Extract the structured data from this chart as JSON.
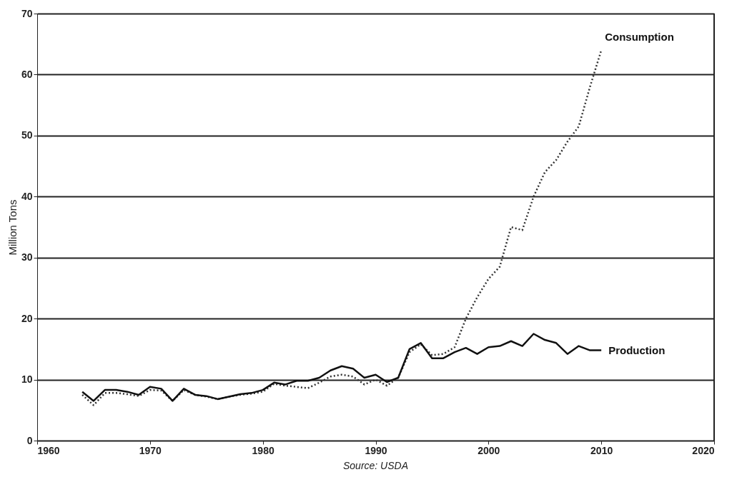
{
  "chart_data": {
    "type": "line",
    "ylabel": "Million Tons",
    "annotations": [
      "Source: USDA"
    ],
    "x": [
      1964,
      1965,
      1966,
      1967,
      1968,
      1969,
      1970,
      1971,
      1972,
      1973,
      1974,
      1975,
      1976,
      1977,
      1978,
      1979,
      1980,
      1981,
      1982,
      1983,
      1984,
      1985,
      1986,
      1987,
      1988,
      1989,
      1990,
      1991,
      1992,
      1993,
      1994,
      1995,
      1996,
      1997,
      1998,
      1999,
      2000,
      2001,
      2002,
      2003,
      2004,
      2005,
      2006,
      2007,
      2008,
      2009,
      2010
    ],
    "series": [
      {
        "name": "Consumption",
        "color": "#333333",
        "line_style": "dotted",
        "values": [
          7.5,
          5.8,
          7.8,
          7.8,
          7.6,
          7.3,
          8.3,
          8.2,
          6.5,
          8.3,
          7.5,
          7.2,
          6.8,
          7.2,
          7.5,
          7.7,
          8.0,
          9.3,
          9.0,
          8.8,
          8.6,
          9.5,
          10.5,
          10.8,
          10.5,
          9.2,
          10.0,
          9.0,
          10.3,
          14.5,
          15.8,
          14.0,
          14.2,
          15.3,
          20.0,
          23.5,
          26.5,
          28.5,
          35.0,
          34.5,
          40.0,
          44.0,
          46.0,
          49.0,
          51.5,
          58.0,
          64.0
        ]
      },
      {
        "name": "Production",
        "color": "#111111",
        "line_style": "solid",
        "values": [
          8.0,
          6.5,
          8.3,
          8.3,
          8.0,
          7.5,
          8.8,
          8.5,
          6.5,
          8.5,
          7.5,
          7.3,
          6.8,
          7.2,
          7.6,
          7.8,
          8.3,
          9.5,
          9.2,
          9.8,
          9.8,
          10.3,
          11.5,
          12.2,
          11.8,
          10.3,
          10.8,
          9.6,
          10.3,
          15.0,
          16.0,
          13.5,
          13.5,
          14.5,
          15.2,
          14.2,
          15.3,
          15.5,
          16.3,
          15.5,
          17.5,
          16.5,
          16.0,
          14.2,
          15.5,
          14.8,
          14.8
        ]
      }
    ],
    "xlim": [
      1960,
      2020
    ],
    "xticks": [
      1960,
      1970,
      1980,
      1990,
      2000,
      2010,
      2020
    ],
    "ylim": [
      0,
      70
    ],
    "yticks": [
      0,
      10,
      20,
      30,
      40,
      50,
      60,
      70
    ],
    "grid": "y",
    "legend": false,
    "marker": "none"
  }
}
